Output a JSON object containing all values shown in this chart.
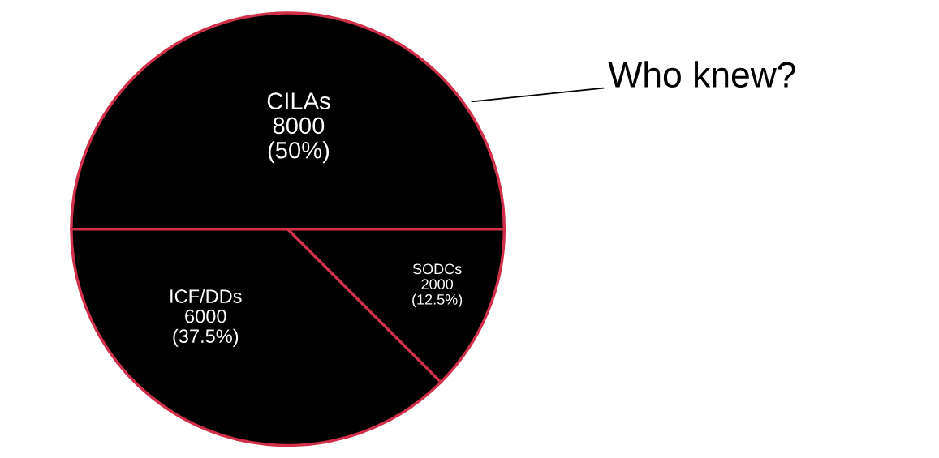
{
  "chart_data": {
    "type": "pie",
    "categories": [
      "CILAs",
      "ICF/DDs",
      "SODCs"
    ],
    "values": [
      8000,
      6000,
      2000
    ],
    "value_labels": [
      "8000\n(50%)",
      "6000\n(37.5%)",
      "2000\n(12.5%)"
    ],
    "colors": [
      "#000000",
      "#000000",
      "#000000"
    ],
    "annotations": [
      "Who knew?"
    ]
  }
}
